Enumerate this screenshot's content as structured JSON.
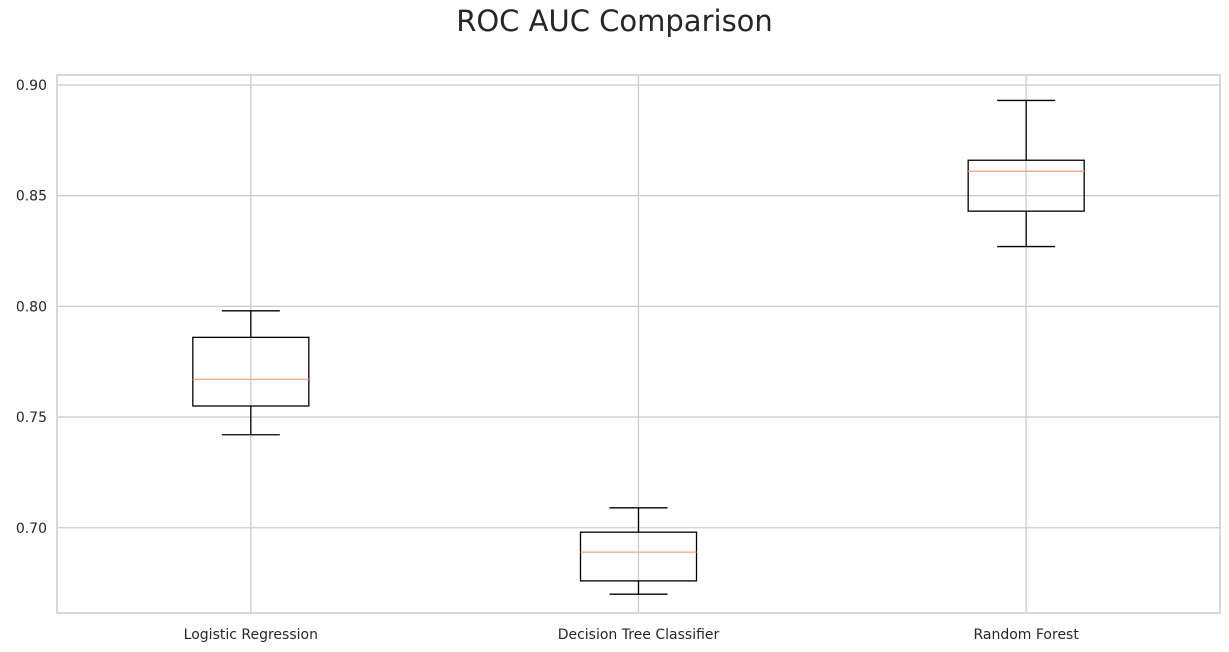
{
  "chart_data": {
    "type": "box",
    "title": "ROC AUC Comparison",
    "xlabel": "",
    "ylabel": "",
    "ylim": [
      0.6615,
      0.9045
    ],
    "yticks": [
      0.7,
      0.75,
      0.8,
      0.85,
      0.9
    ],
    "ytick_labels": [
      "0.70",
      "0.75",
      "0.80",
      "0.85",
      "0.90"
    ],
    "grid": true,
    "box_color": "#000000",
    "median_color": "#f4a582",
    "series": [
      {
        "name": "Logistic Regression",
        "whisker_low": 0.742,
        "q1": 0.755,
        "median": 0.767,
        "q3": 0.786,
        "whisker_high": 0.798
      },
      {
        "name": "Decision Tree Classifier",
        "whisker_low": 0.67,
        "q1": 0.676,
        "median": 0.689,
        "q3": 0.698,
        "whisker_high": 0.709
      },
      {
        "name": "Random Forest",
        "whisker_low": 0.827,
        "q1": 0.843,
        "median": 0.861,
        "q3": 0.866,
        "whisker_high": 0.893
      }
    ]
  }
}
